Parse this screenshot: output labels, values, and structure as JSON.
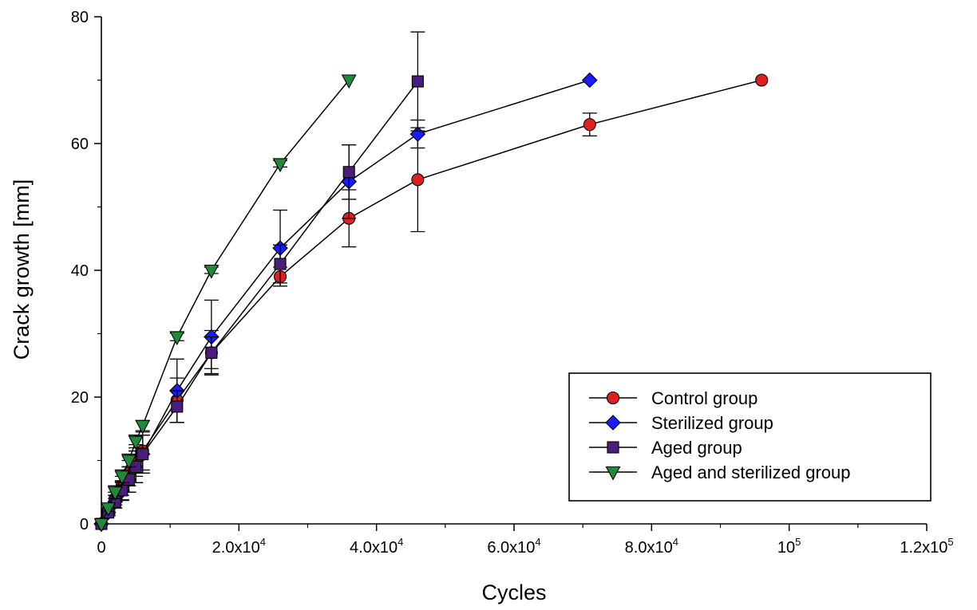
{
  "chart_data": {
    "type": "line",
    "xlabel": "Cycles",
    "ylabel": "Crack growth [mm]",
    "xlim": [
      0,
      120000
    ],
    "ylim": [
      0,
      80
    ],
    "x_ticks": [
      {
        "value": 0,
        "label": "0"
      },
      {
        "value": 20000,
        "label": "2.0x10",
        "sup": "4"
      },
      {
        "value": 40000,
        "label": "4.0x10",
        "sup": "4"
      },
      {
        "value": 60000,
        "label": "6.0x10",
        "sup": "4"
      },
      {
        "value": 80000,
        "label": "8.0x10",
        "sup": "4"
      },
      {
        "value": 100000,
        "label": "10",
        "sup": "5"
      },
      {
        "value": 120000,
        "label": "1.2x10",
        "sup": "5"
      }
    ],
    "y_ticks": [
      {
        "value": 0,
        "label": "0"
      },
      {
        "value": 20,
        "label": "20"
      },
      {
        "value": 40,
        "label": "40"
      },
      {
        "value": 60,
        "label": "60"
      },
      {
        "value": 80,
        "label": "80"
      }
    ],
    "legend_position": "lower-right",
    "series": [
      {
        "name": "Control group",
        "marker": "circle",
        "color": "#e02020",
        "x": [
          0,
          1000,
          2000,
          3000,
          4000,
          5000,
          6000,
          11000,
          16000,
          26000,
          36000,
          46000,
          71000,
          96000
        ],
        "y": [
          0,
          2,
          4,
          6,
          8,
          10,
          11.5,
          19.5,
          27,
          39,
          48.2,
          54.3,
          63,
          70
        ],
        "err": [
          0,
          0.5,
          1,
          1.5,
          2,
          2.5,
          3,
          3.5,
          3.5,
          1.5,
          4.5,
          8.2,
          1.8,
          0
        ]
      },
      {
        "name": "Sterilized group",
        "marker": "diamond",
        "color": "#1a1aff",
        "x": [
          0,
          1000,
          2000,
          3000,
          4000,
          5000,
          6000,
          11000,
          16000,
          26000,
          36000,
          46000,
          71000
        ],
        "y": [
          0,
          1.8,
          3.5,
          5.2,
          7,
          9,
          11,
          21,
          29.5,
          43.5,
          54,
          61.5,
          70
        ],
        "err": [
          0,
          0.5,
          1,
          1.5,
          2,
          2.5,
          3,
          5,
          5.8,
          6,
          5.8,
          2.2,
          0
        ]
      },
      {
        "name": "Aged group",
        "marker": "square",
        "color": "#4b1d7a",
        "x": [
          0,
          1000,
          2000,
          3000,
          4000,
          5000,
          6000,
          11000,
          16000,
          26000,
          36000,
          46000
        ],
        "y": [
          0,
          1.8,
          3.5,
          5.3,
          7,
          9,
          11,
          18.5,
          27,
          41,
          55.5,
          69.8
        ],
        "err": [
          0,
          0.5,
          1,
          1.5,
          2,
          2.5,
          3,
          2.5,
          2.5,
          3,
          4.3,
          7.8
        ]
      },
      {
        "name": "Aged and sterilized group",
        "marker": "triangle-down",
        "color": "#1f8a3a",
        "x": [
          0,
          1000,
          2000,
          3000,
          4000,
          5000,
          6000,
          11000,
          16000,
          26000,
          36000
        ],
        "y": [
          0,
          2.5,
          5,
          7.5,
          10,
          13,
          15.5,
          29.5,
          40,
          56.8,
          70
        ],
        "err": [
          0,
          0.5,
          1,
          1,
          1,
          1,
          0.8,
          0.6,
          0.5,
          0.5,
          0
        ]
      }
    ]
  }
}
